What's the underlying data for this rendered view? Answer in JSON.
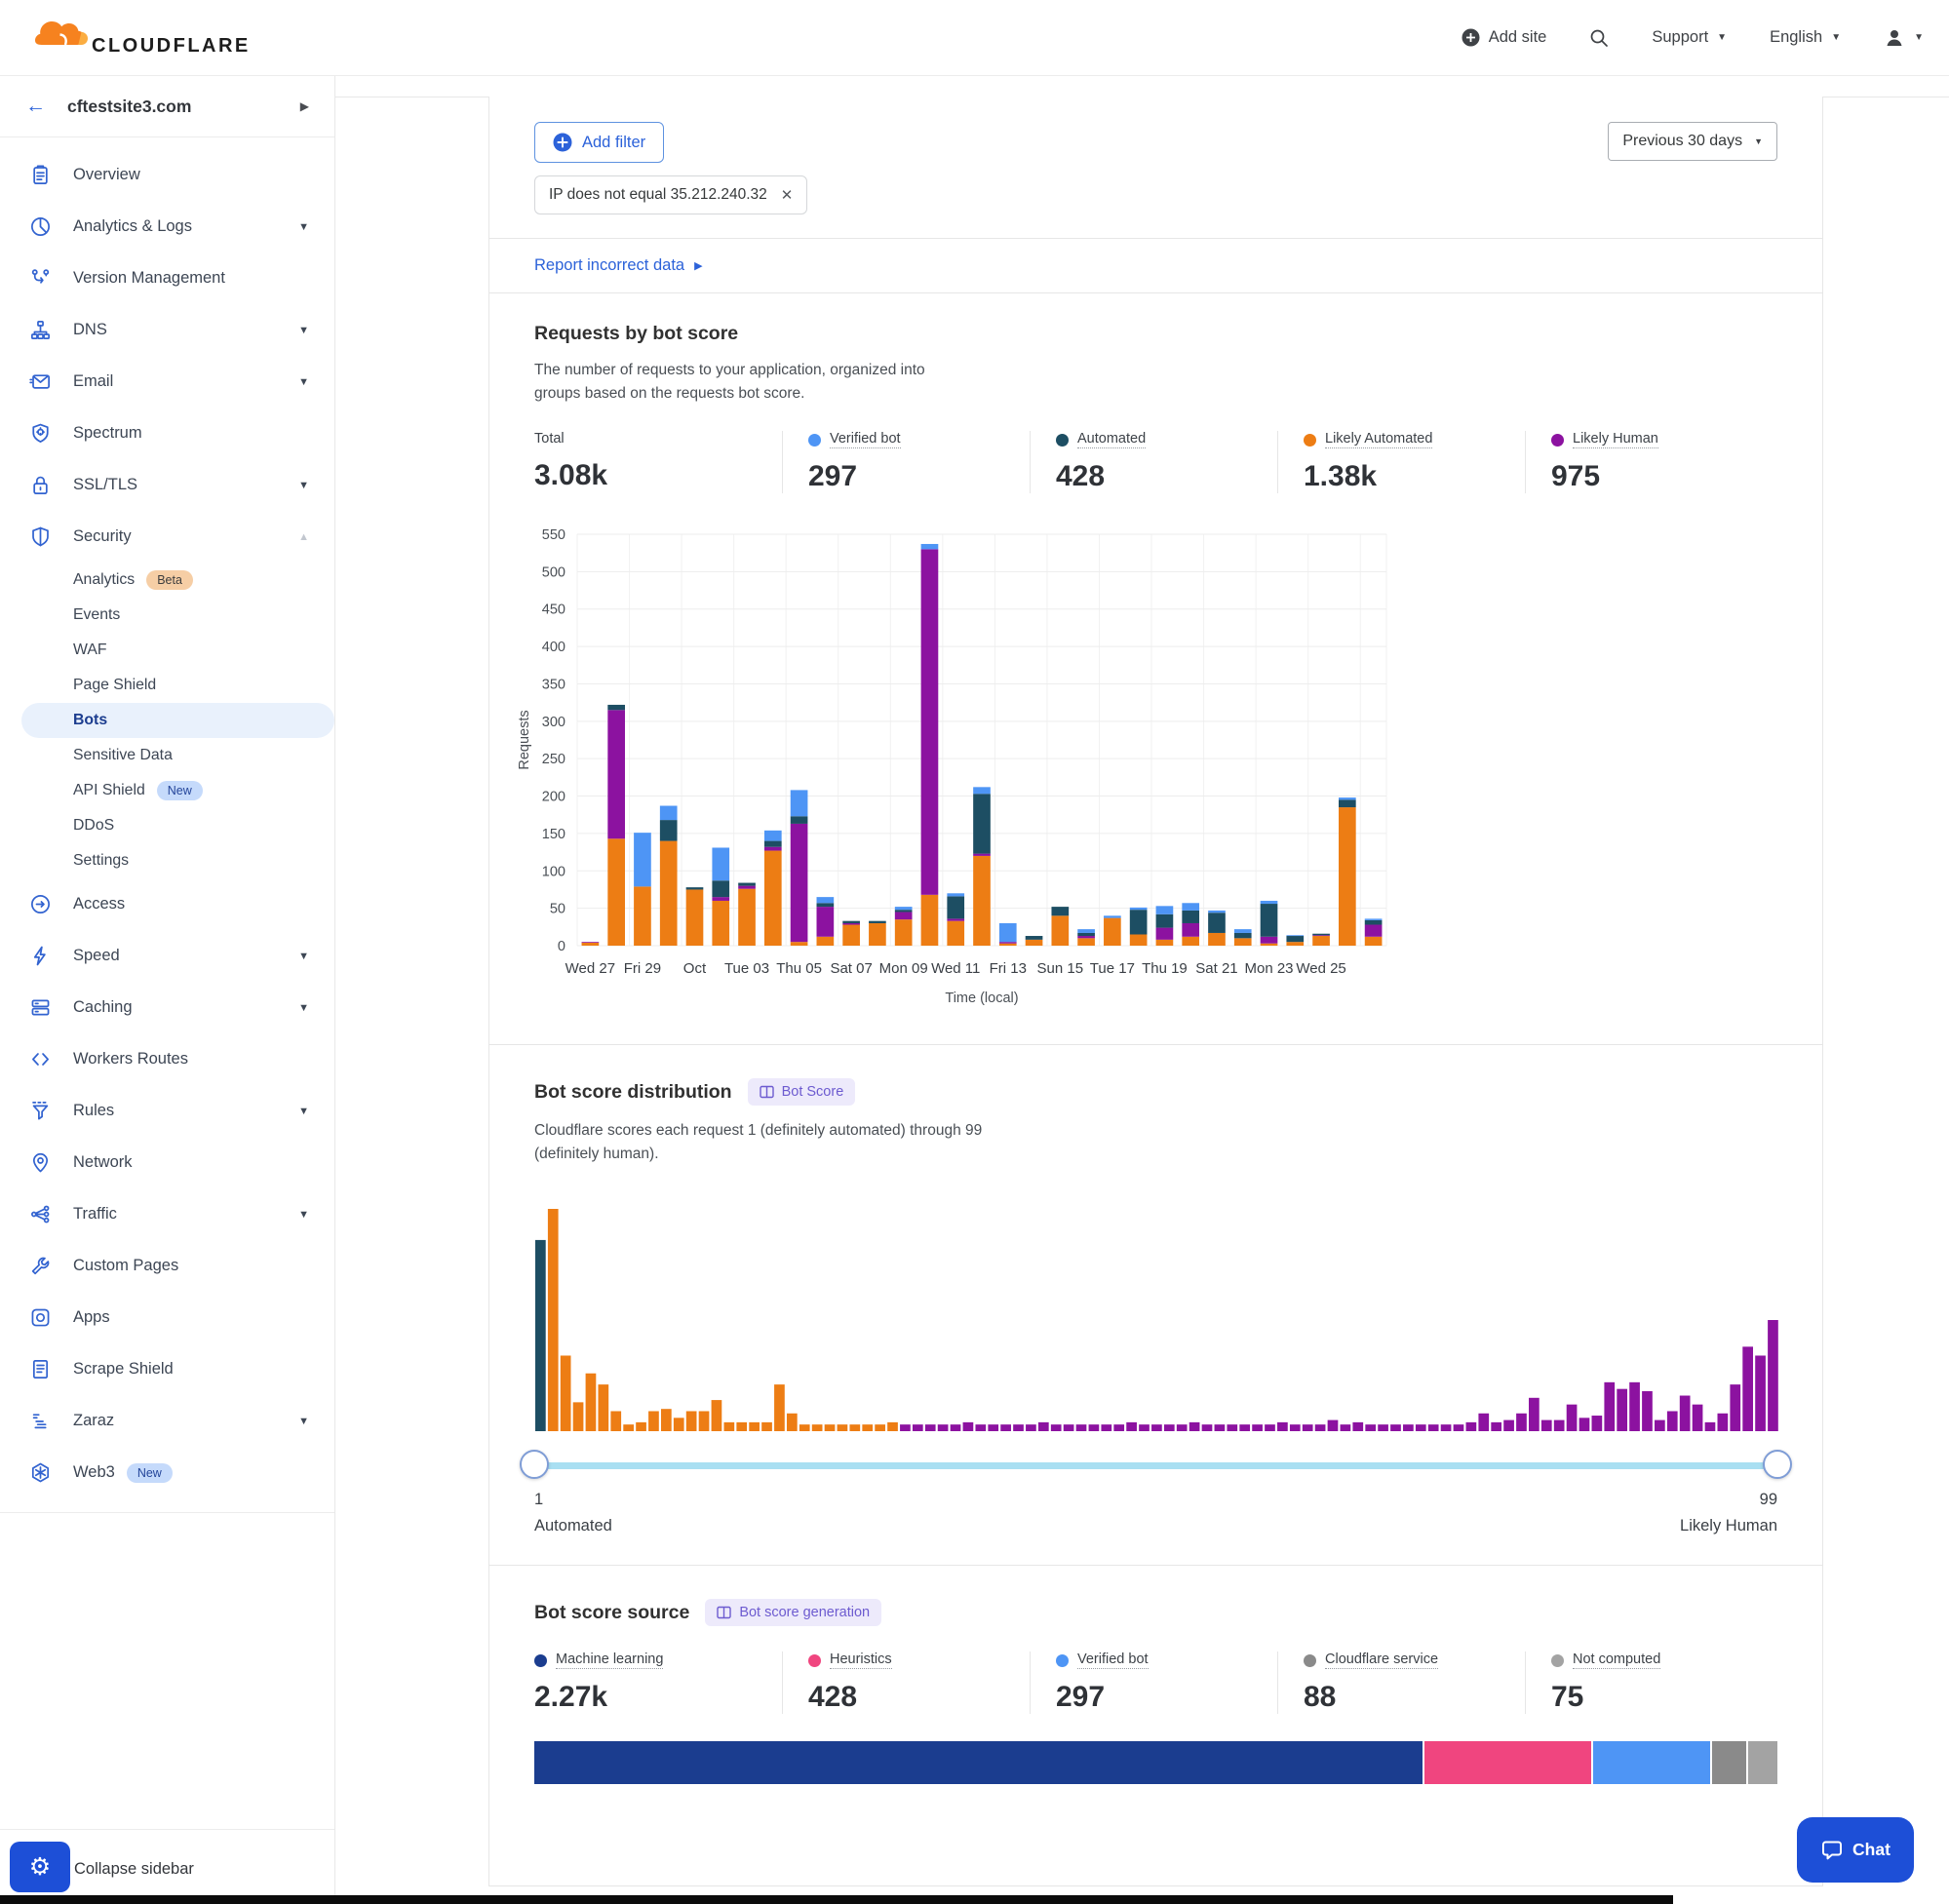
{
  "header": {
    "brand": "CLOUDFLARE",
    "add_site": "Add site",
    "support": "Support",
    "language": "English"
  },
  "sidebar": {
    "site": "cftestsite3.com",
    "collapse_label": "Collapse sidebar",
    "items": [
      {
        "icon": "overview",
        "label": "Overview"
      },
      {
        "icon": "analytics-logs",
        "label": "Analytics & Logs",
        "caret": "down"
      },
      {
        "icon": "version-management",
        "label": "Version Management"
      },
      {
        "icon": "dns",
        "label": "DNS",
        "caret": "down"
      },
      {
        "icon": "email",
        "label": "Email",
        "caret": "down"
      },
      {
        "icon": "spectrum",
        "label": "Spectrum"
      },
      {
        "icon": "ssl-tls",
        "label": "SSL/TLS",
        "caret": "down"
      },
      {
        "icon": "security",
        "label": "Security",
        "caret": "up",
        "sub": [
          {
            "label": "Analytics",
            "badge": "Beta",
            "badge_type": "beta"
          },
          {
            "label": "Events"
          },
          {
            "label": "WAF"
          },
          {
            "label": "Page Shield"
          },
          {
            "label": "Bots",
            "active": true
          },
          {
            "label": "Sensitive Data"
          },
          {
            "label": "API Shield",
            "badge": "New",
            "badge_type": "new"
          },
          {
            "label": "DDoS"
          },
          {
            "label": "Settings"
          }
        ]
      },
      {
        "icon": "access",
        "label": "Access"
      },
      {
        "icon": "speed",
        "label": "Speed",
        "caret": "down"
      },
      {
        "icon": "caching",
        "label": "Caching",
        "caret": "down"
      },
      {
        "icon": "workers-routes",
        "label": "Workers Routes"
      },
      {
        "icon": "rules",
        "label": "Rules",
        "caret": "down"
      },
      {
        "icon": "network",
        "label": "Network"
      },
      {
        "icon": "traffic",
        "label": "Traffic",
        "caret": "down"
      },
      {
        "icon": "custom-pages",
        "label": "Custom Pages"
      },
      {
        "icon": "apps",
        "label": "Apps"
      },
      {
        "icon": "scrape-shield",
        "label": "Scrape Shield"
      },
      {
        "icon": "zaraz",
        "label": "Zaraz",
        "caret": "down"
      },
      {
        "icon": "web3",
        "label": "Web3",
        "badge": "New",
        "badge_type": "new"
      }
    ]
  },
  "filters": {
    "add_filter_label": "Add filter",
    "chip_text": "IP does not equal 35.212.240.32",
    "range_label": "Previous 30 days"
  },
  "report_link": {
    "text": "Report incorrect data"
  },
  "requests_section": {
    "title": "Requests by bot score",
    "desc": "The number of requests to your application, organized into groups based on the requests bot score.",
    "stats": [
      {
        "label": "Total",
        "value": "3.08k"
      },
      {
        "label": "Verified bot",
        "value": "297",
        "color_key": "verified_bot"
      },
      {
        "label": "Automated",
        "value": "428",
        "color_key": "automated"
      },
      {
        "label": "Likely Automated",
        "value": "1.38k",
        "color_key": "likely_automated"
      },
      {
        "label": "Likely Human",
        "value": "975",
        "color_key": "likely_human"
      }
    ]
  },
  "distribution_section": {
    "title": "Bot score distribution",
    "badge": "Bot Score",
    "desc": "Cloudflare scores each request 1 (definitely automated) through 99 (definitely human).",
    "slider": {
      "min": "1",
      "min_label": "Automated",
      "max": "99",
      "max_label": "Likely Human"
    }
  },
  "source_section": {
    "title": "Bot score source",
    "badge": "Bot score generation",
    "stats": [
      {
        "label": "Machine learning",
        "value": "2.27k",
        "color_key": "machine_learning"
      },
      {
        "label": "Heuristics",
        "value": "428",
        "color_key": "heuristics"
      },
      {
        "label": "Verified bot",
        "value": "297",
        "color_key": "verified_bot"
      },
      {
        "label": "Cloudflare service",
        "value": "88",
        "color_key": "cloudflare_service"
      },
      {
        "label": "Not computed",
        "value": "75",
        "color_key": "not_computed"
      }
    ]
  },
  "chat": {
    "label": "Chat"
  },
  "colors": {
    "verified_bot": "#4E95F5",
    "automated": "#1D4E63",
    "likely_automated": "#ED7D14",
    "likely_human": "#8C12A0",
    "machine_learning": "#1B3D8F",
    "heuristics": "#F0457F",
    "cloudflare_service": "#8A8A8A",
    "not_computed": "#A3A3A3",
    "accent_blue": "#2C62D9",
    "slider_track": "#A9DFF2",
    "grid": "#EDEDED"
  },
  "chart_data": [
    {
      "name": "requests_by_bot_score",
      "type": "bar",
      "stacked": true,
      "title": "Requests by bot score",
      "xlabel": "Time (local)",
      "ylabel": "Requests",
      "ylim": [
        0,
        550
      ],
      "y_tick_step": 50,
      "grid": true,
      "tick_labels": [
        "Wed 27",
        "Fri 29",
        "Oct",
        "Tue 03",
        "Thu 05",
        "Sat 07",
        "Mon 09",
        "Wed 11",
        "Fri 13",
        "Sun 15",
        "Tue 17",
        "Thu 19",
        "Sat 21",
        "Mon 23",
        "Wed 25"
      ],
      "series": [
        {
          "name": "Likely Automated",
          "color_key": "likely_automated",
          "values": [
            4,
            143,
            79,
            140,
            75,
            60,
            76,
            127,
            5,
            12,
            28,
            30,
            35,
            68,
            33,
            120,
            3,
            8,
            40,
            10,
            37,
            15,
            8,
            12,
            17,
            10,
            3,
            5,
            13,
            185,
            12
          ]
        },
        {
          "name": "Likely Human",
          "color_key": "likely_human",
          "values": [
            1,
            172,
            0,
            0,
            0,
            5,
            4,
            5,
            158,
            40,
            2,
            0,
            10,
            462,
            3,
            3,
            2,
            0,
            0,
            3,
            0,
            0,
            16,
            18,
            0,
            0,
            9,
            0,
            1,
            0,
            16
          ]
        },
        {
          "name": "Automated",
          "color_key": "automated",
          "values": [
            0,
            7,
            0,
            28,
            3,
            22,
            4,
            8,
            10,
            5,
            3,
            3,
            3,
            0,
            30,
            80,
            0,
            5,
            12,
            4,
            0,
            33,
            18,
            17,
            27,
            7,
            44,
            8,
            2,
            10,
            6
          ]
        },
        {
          "name": "Verified bot",
          "color_key": "verified_bot",
          "values": [
            0,
            0,
            72,
            19,
            0,
            44,
            0,
            14,
            35,
            8,
            0,
            0,
            4,
            7,
            4,
            9,
            25,
            0,
            0,
            5,
            3,
            3,
            11,
            10,
            3,
            5,
            4,
            1,
            0,
            3,
            2
          ]
        }
      ]
    },
    {
      "name": "bot_score_distribution",
      "type": "bar",
      "x_range": [
        1,
        99
      ],
      "unit": "relative_height_pct",
      "color_rule": {
        "score_1": "automated",
        "scores_2_29": "likely_automated",
        "scores_30_99": "likely_human"
      },
      "values": [
        86,
        100,
        34,
        13,
        26,
        21,
        9,
        3,
        4,
        9,
        10,
        6,
        9,
        9,
        14,
        4,
        4,
        4,
        4,
        21,
        8,
        3,
        3,
        3,
        3,
        3,
        3,
        3,
        4,
        3,
        3,
        3,
        3,
        3,
        4,
        3,
        3,
        3,
        3,
        3,
        4,
        3,
        3,
        3,
        3,
        3,
        3,
        4,
        3,
        3,
        3,
        3,
        4,
        3,
        3,
        3,
        3,
        3,
        3,
        4,
        3,
        3,
        3,
        5,
        3,
        4,
        3,
        3,
        3,
        3,
        3,
        3,
        3,
        3,
        4,
        8,
        4,
        5,
        8,
        15,
        5,
        5,
        12,
        6,
        7,
        22,
        19,
        22,
        18,
        5,
        9,
        16,
        12,
        4,
        8,
        21,
        38,
        34,
        50
      ]
    },
    {
      "name": "bot_score_source",
      "type": "stacked_bar_horizontal",
      "total": 3158,
      "segments": [
        {
          "label": "Machine learning",
          "value": 2270,
          "color_key": "machine_learning"
        },
        {
          "label": "Heuristics",
          "value": 428,
          "color_key": "heuristics"
        },
        {
          "label": "Verified bot",
          "value": 297,
          "color_key": "verified_bot"
        },
        {
          "label": "Cloudflare service",
          "value": 88,
          "color_key": "cloudflare_service"
        },
        {
          "label": "Not computed",
          "value": 75,
          "color_key": "not_computed"
        }
      ]
    }
  ]
}
